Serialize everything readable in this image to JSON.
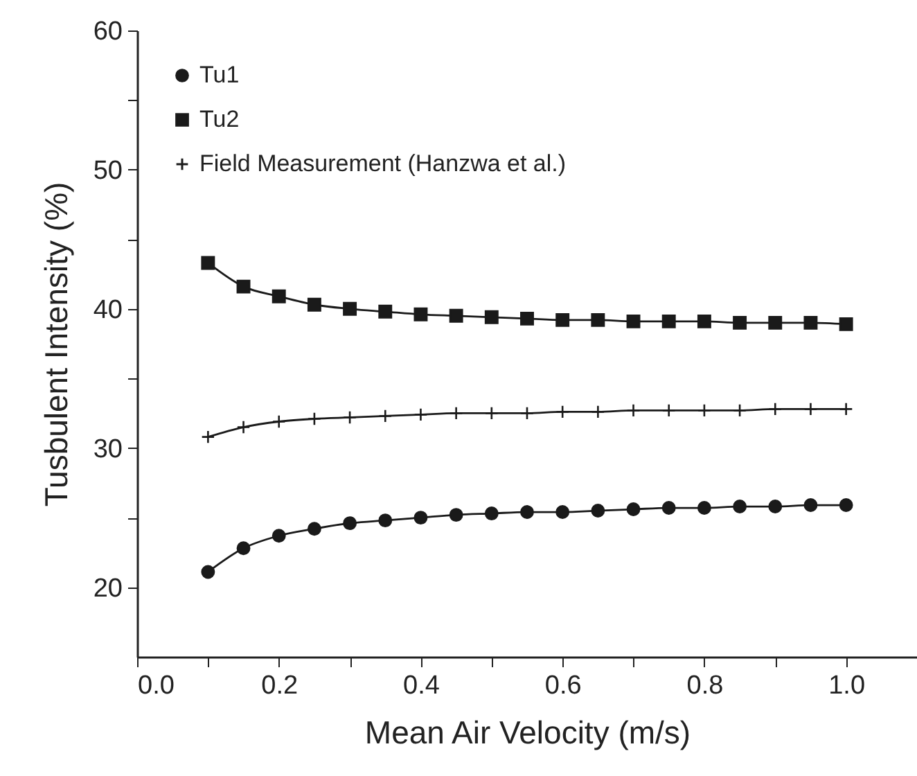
{
  "chart_data": {
    "type": "line",
    "xlabel": "Mean Air Velocity (m/s)",
    "ylabel": "Tusbulent Intensity (%)",
    "x": [
      0.1,
      0.15,
      0.2,
      0.25,
      0.3,
      0.35,
      0.4,
      0.45,
      0.5,
      0.55,
      0.6,
      0.65,
      0.7,
      0.75,
      0.8,
      0.85,
      0.9,
      0.95,
      1.0
    ],
    "series": [
      {
        "name": "Tu1",
        "color": "#1a1a1a",
        "marker": "circle",
        "values": [
          21.1,
          22.8,
          23.7,
          24.2,
          24.6,
          24.8,
          25.0,
          25.2,
          25.3,
          25.4,
          25.4,
          25.5,
          25.6,
          25.7,
          25.7,
          25.8,
          25.8,
          25.9,
          25.9
        ]
      },
      {
        "name": "Tu2",
        "color": "#1a1a1a",
        "marker": "square",
        "values": [
          43.3,
          41.6,
          40.9,
          40.3,
          40.0,
          39.8,
          39.6,
          39.5,
          39.4,
          39.3,
          39.2,
          39.2,
          39.1,
          39.1,
          39.1,
          39.0,
          39.0,
          39.0,
          38.9
        ]
      },
      {
        "name": "Field Measurement (Hanzwa et al.)",
        "color": "#1a1a1a",
        "marker": "cross",
        "values": [
          30.8,
          31.5,
          31.9,
          32.1,
          32.2,
          32.3,
          32.4,
          32.5,
          32.5,
          32.5,
          32.6,
          32.6,
          32.7,
          32.7,
          32.7,
          32.7,
          32.8,
          32.8,
          32.8
        ]
      }
    ],
    "xlim": [
      0,
      1.1
    ],
    "xticks": [
      {
        "value": 0,
        "label": "0.0"
      },
      {
        "value": 0.1,
        "label": null
      },
      0.2,
      {
        "value": 0.3,
        "label": null
      },
      0.4,
      {
        "value": 0.5,
        "label": null
      },
      0.6,
      {
        "value": 0.7,
        "label": null
      },
      0.8,
      {
        "value": 0.9,
        "label": null
      },
      {
        "value": 1,
        "label": "1.0"
      }
    ],
    "ylim": [
      15,
      60
    ],
    "yticks": [
      20,
      {
        "value": 25,
        "label": null
      },
      30,
      {
        "value": 35,
        "label": null
      },
      40,
      {
        "value": 45,
        "label": null
      },
      50,
      {
        "value": 55,
        "label": null
      },
      60
    ],
    "grid": false,
    "legend": "top left",
    "line_style": "solid"
  }
}
